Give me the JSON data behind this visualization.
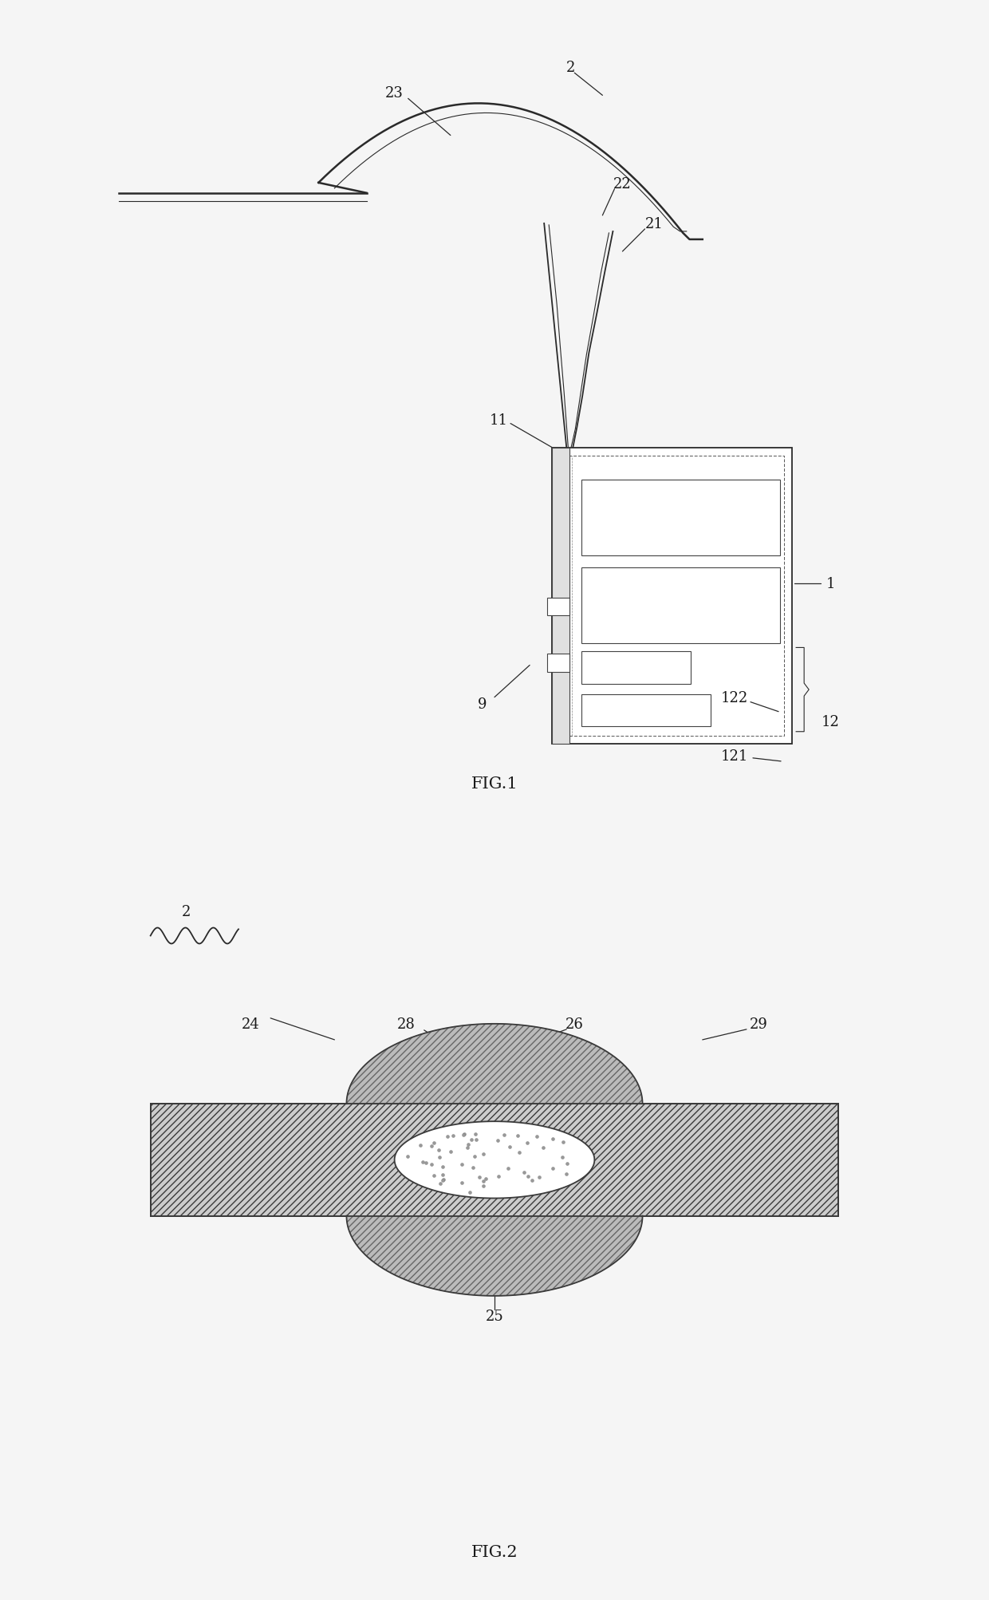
{
  "fig_width": 12.4,
  "fig_height": 20.06,
  "dpi": 100,
  "bg_color": "#f5f5f5",
  "line_color": "#2a2a2a",
  "label_color": "#1a1a1a",
  "hatch_color": "#666666",
  "light_gray": "#d8d8d8",
  "medium_gray": "#b0b0b0"
}
